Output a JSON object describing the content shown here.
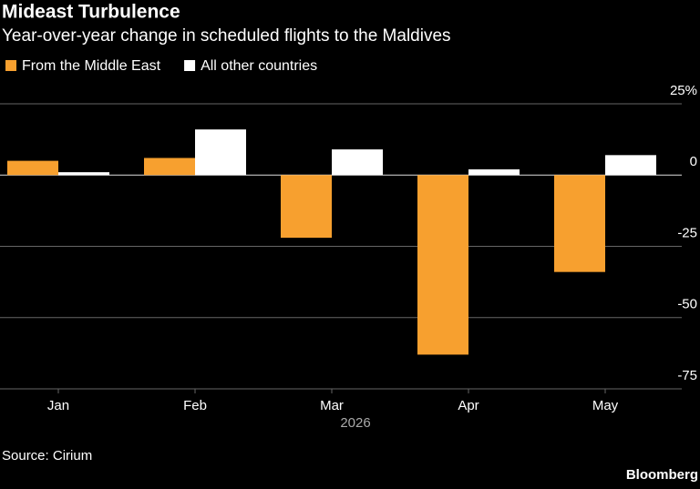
{
  "chart_data": {
    "type": "bar",
    "title": "Mideast Turbulence",
    "subtitle": "Year-over-year change in scheduled flights to the Maldives",
    "categories": [
      "Jan",
      "Feb",
      "Mar",
      "Apr",
      "May"
    ],
    "xlabel": "2026",
    "series": [
      {
        "name": "From the Middle East",
        "color": "#f7a02f",
        "values": [
          5,
          6,
          -22,
          -63,
          -34
        ]
      },
      {
        "name": "All other countries",
        "color": "#ffffff",
        "values": [
          1,
          16,
          9,
          2,
          7
        ]
      }
    ],
    "ylim": [
      -75,
      25
    ],
    "yticks": [
      {
        "value": 25,
        "label": "25%"
      },
      0,
      -25,
      -50,
      -75
    ],
    "grid": true,
    "source": "Source: Cirium",
    "credit": "Bloomberg"
  }
}
